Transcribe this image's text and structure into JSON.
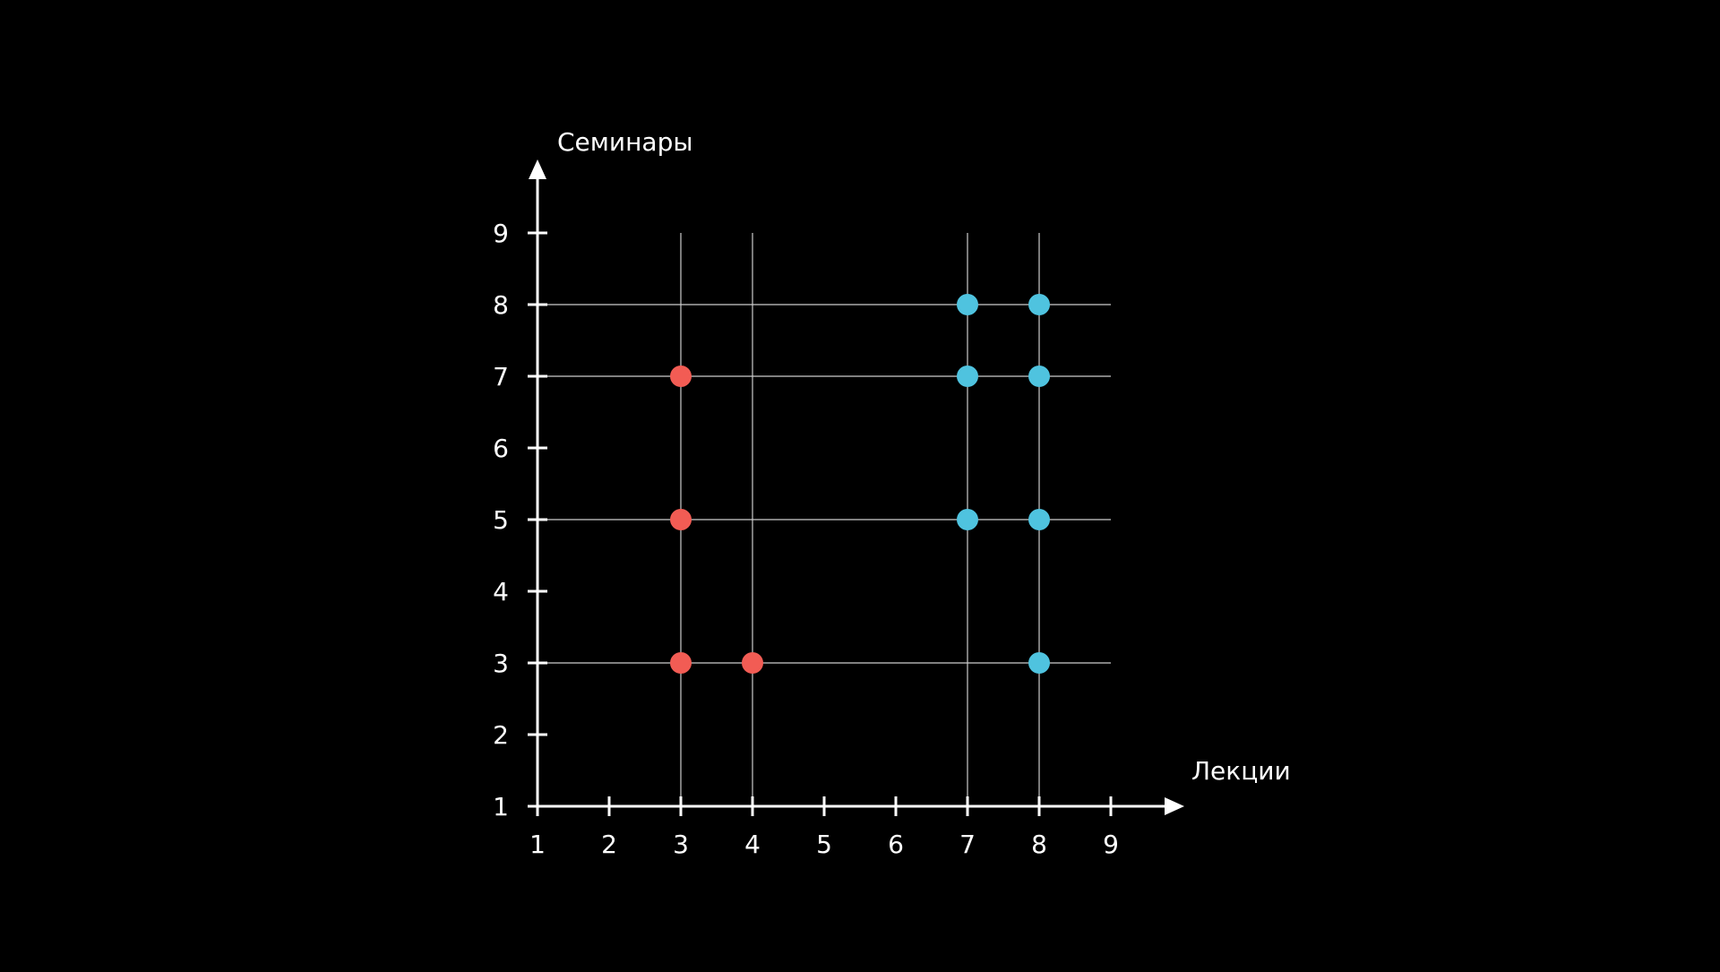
{
  "chart_data": {
    "type": "scatter",
    "title": "",
    "xlabel": "Лекции",
    "ylabel": "Семинары",
    "xlim": [
      1,
      9
    ],
    "ylim": [
      1,
      9
    ],
    "x_ticks": [
      "1",
      "2",
      "3",
      "4",
      "5",
      "6",
      "7",
      "8",
      "9"
    ],
    "y_ticks": [
      "1",
      "2",
      "3",
      "4",
      "5",
      "6",
      "7",
      "8",
      "9"
    ],
    "grid_x": [
      3,
      4,
      7,
      8
    ],
    "grid_y": [
      3,
      5,
      7,
      8
    ],
    "grid_x_range": [
      3,
      9
    ],
    "grid_y_range": [
      1,
      9
    ],
    "series": [
      {
        "color": "#f25c54",
        "points": [
          {
            "x": 3,
            "y": 7
          },
          {
            "x": 3,
            "y": 5
          },
          {
            "x": 3,
            "y": 3
          },
          {
            "x": 4,
            "y": 3
          }
        ]
      },
      {
        "color": "#4fc3df",
        "points": [
          {
            "x": 7,
            "y": 8
          },
          {
            "x": 8,
            "y": 8
          },
          {
            "x": 7,
            "y": 7
          },
          {
            "x": 8,
            "y": 7
          },
          {
            "x": 7,
            "y": 5
          },
          {
            "x": 8,
            "y": 5
          },
          {
            "x": 8,
            "y": 3
          }
        ]
      }
    ],
    "background": "#000000",
    "axis_color": "#ffffff",
    "grid_color": "#cccccc"
  }
}
